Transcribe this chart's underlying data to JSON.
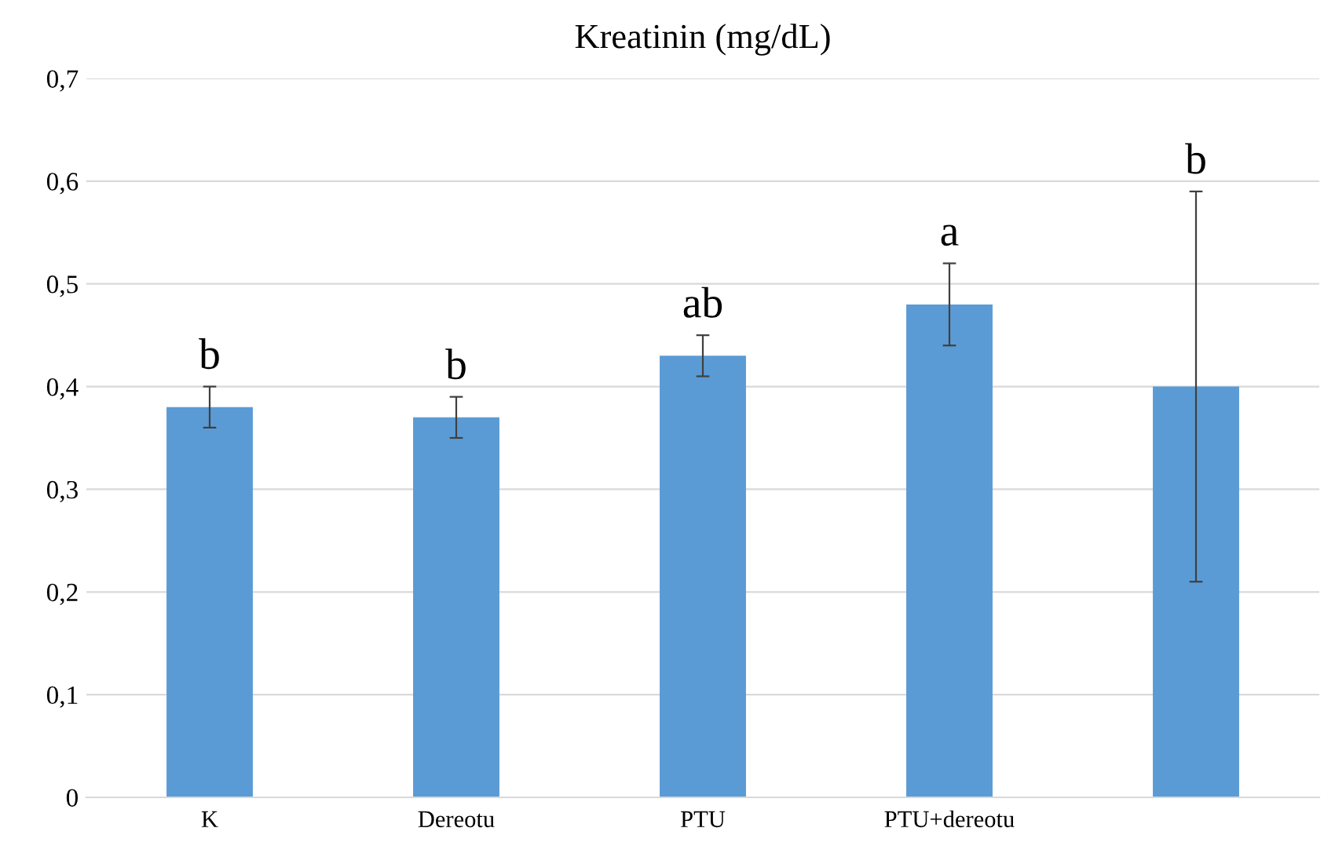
{
  "chart_data": {
    "type": "bar",
    "title": "Kreatinin (mg/dL)",
    "categories": [
      "K",
      "Dereotu",
      "PTU",
      "PTU+dereotu",
      null
    ],
    "values": [
      0.38,
      0.37,
      0.43,
      0.48,
      0.4
    ],
    "errors": [
      0.02,
      0.02,
      0.02,
      0.04,
      0.19
    ],
    "color": "#5b9bd5",
    "ylim": [
      0,
      0.7
    ],
    "yticks": [
      0,
      {
        "value": 0.1,
        "label": "0,1"
      },
      {
        "value": 0.2,
        "label": "0,2"
      },
      {
        "value": 0.3,
        "label": "0,3"
      },
      {
        "value": 0.4,
        "label": "0,4"
      },
      {
        "value": 0.5,
        "label": "0,5"
      },
      {
        "value": 0.6,
        "label": "0,6"
      },
      {
        "value": 0.7,
        "label": "0,7"
      }
    ],
    "grid": "y",
    "annotations": [
      {
        "text": "b",
        "x": "K",
        "y": 0.4
      },
      {
        "text": "b",
        "x": "Dereotu",
        "y": 0.39
      },
      {
        "text": "ab",
        "x": "PTU",
        "y": 0.45
      },
      {
        "text": "a",
        "x": "PTU+dereotu",
        "y": 0.52
      },
      {
        "text": "b",
        "y": 0.59
      }
    ]
  }
}
